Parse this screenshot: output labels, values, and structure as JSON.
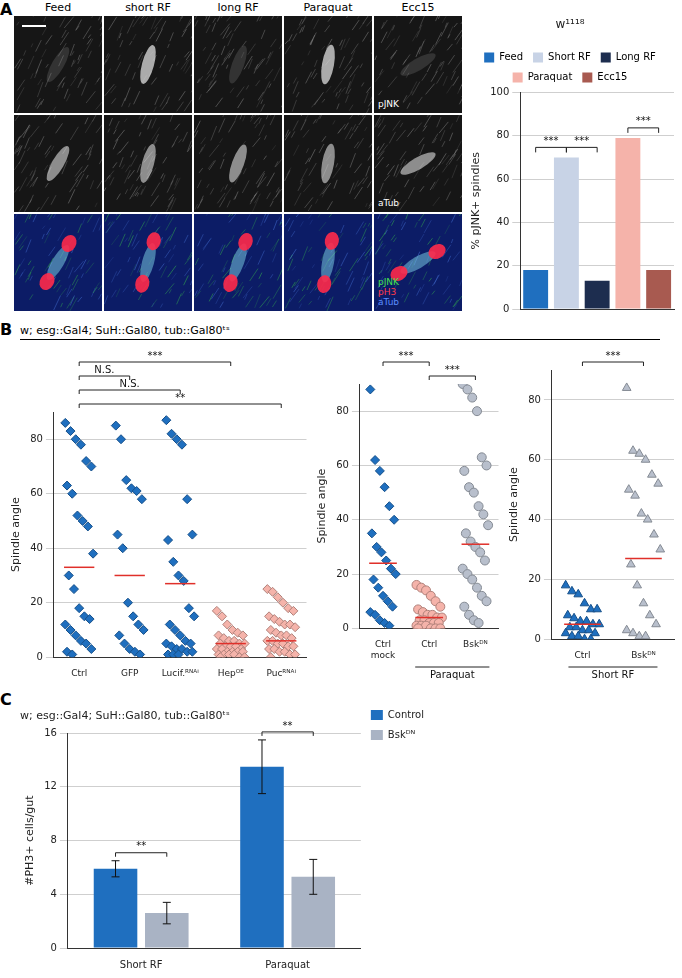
{
  "figure": {
    "panel_labels": [
      "A",
      "B",
      "C"
    ],
    "image_columns": [
      "Feed",
      "short RF",
      "long RF",
      "Paraquat",
      "Ecc15"
    ],
    "image_channels": [
      [
        "pJNK"
      ],
      [
        "aTub"
      ],
      [
        "pJNK",
        "pH3",
        "aTub"
      ]
    ],
    "header": "w; esg::Gal4; SuH::Gal80, tub::Gal80ᵗˢ"
  },
  "chart_data": [
    {
      "type": "bar",
      "title": "w¹¹¹⁸",
      "categories": [
        "Feed",
        "Short RF",
        "Long RF",
        "Paraquat",
        "Ecc15"
      ],
      "values": [
        18,
        70,
        13,
        79,
        18
      ],
      "colors": [
        "#1f6fbf",
        "#c8d3e6",
        "#1d2d4f",
        "#f5b3aa",
        "#a85a50"
      ],
      "ylim": [
        0,
        100
      ],
      "yticks": [
        0,
        20,
        40,
        60,
        80,
        100
      ],
      "ylabel": "% pJNK+ spindles",
      "grid": true,
      "legend": "top",
      "tick_labels": "y",
      "annotations": [
        {
          "text": "***",
          "between": [
            "Feed",
            "Short RF"
          ]
        },
        {
          "text": "***",
          "between": [
            "Short RF",
            "Long RF"
          ]
        },
        {
          "text": "***",
          "between": [
            "Paraquat",
            "Ecc15"
          ]
        }
      ]
    },
    {
      "type": "dot",
      "ylabel": "Spindle angle",
      "ylim": [
        0,
        90
      ],
      "yticks": [
        0,
        20,
        40,
        60,
        80
      ],
      "grid": true,
      "series": [
        {
          "name": "Ctrl",
          "color": "#1f6fbf",
          "marker": "diamond",
          "mean": 33,
          "values": [
            86,
            83,
            80,
            78,
            72,
            70,
            63,
            60,
            52,
            50,
            48,
            38,
            30,
            25,
            18,
            15,
            14,
            12,
            10,
            8,
            6,
            5,
            3,
            2,
            1
          ]
        },
        {
          "name": "GFP",
          "color": "#1f6fbf",
          "marker": "diamond",
          "mean": 30,
          "values": [
            85,
            80,
            65,
            62,
            61,
            58,
            45,
            40,
            20,
            15,
            12,
            10,
            8,
            5,
            3,
            2,
            1
          ]
        },
        {
          "name": "Lucif.ᴿᴺᴬⁱ",
          "color": "#1f6fbf",
          "marker": "diamond",
          "mean": 27,
          "values": [
            87,
            82,
            80,
            78,
            58,
            45,
            43,
            35,
            30,
            28,
            18,
            15,
            12,
            10,
            8,
            6,
            5,
            5,
            4,
            3,
            3,
            2,
            2,
            1,
            1,
            1
          ]
        },
        {
          "name": "Hepᴼᴱ",
          "color": "#f5b3aa",
          "marker": "diamond",
          "mean": 5,
          "values": [
            17,
            15,
            12,
            10,
            9,
            8,
            8,
            7,
            6,
            6,
            5,
            5,
            5,
            4,
            4,
            4,
            3,
            3,
            3,
            2,
            2,
            2,
            2,
            1,
            1,
            1,
            1,
            0,
            0,
            0
          ]
        },
        {
          "name": "Pucᴿᴺᴬⁱ",
          "color": "#f5b3aa",
          "marker": "diamond",
          "mean": 6,
          "values": [
            25,
            24,
            22,
            20,
            18,
            17,
            15,
            14,
            13,
            12,
            12,
            11,
            10,
            9,
            8,
            8,
            7,
            6,
            6,
            5,
            5,
            4,
            4,
            3,
            3,
            2,
            2,
            1,
            1,
            0
          ]
        }
      ],
      "annotations": [
        {
          "text": "***",
          "between": [
            "Ctrl",
            "Hepᴼᴱ"
          ]
        },
        {
          "text": "N.S.",
          "between": [
            "Ctrl",
            "GFP"
          ]
        },
        {
          "text": "N.S.",
          "between": [
            "Ctrl",
            "Lucif.ᴿᴺᴬⁱ"
          ]
        },
        {
          "text": "**",
          "between": [
            "Ctrl",
            "Pucᴿᴺᴬⁱ"
          ]
        }
      ]
    },
    {
      "type": "dot",
      "ylabel": "Spindle angle",
      "ylim": [
        0,
        90
      ],
      "yticks": [
        0,
        20,
        40,
        60,
        80
      ],
      "grid": true,
      "series": [
        {
          "name": "Ctrl\nmock",
          "color": "#1f6fbf",
          "marker": "diamond",
          "mean": 24,
          "values": [
            88,
            62,
            58,
            52,
            45,
            40,
            35,
            30,
            28,
            25,
            22,
            20,
            18,
            15,
            12,
            10,
            8,
            6,
            5,
            3,
            2,
            1
          ]
        },
        {
          "name": "Ctrl",
          "color": "#f5b3aa",
          "marker": "circle",
          "mean": 4,
          "values": [
            16,
            15,
            14,
            12,
            10,
            8,
            7,
            6,
            5,
            5,
            4,
            4,
            3,
            3,
            2,
            2,
            2,
            1,
            1,
            1,
            0,
            0,
            0,
            0
          ]
        },
        {
          "name": "Bskᴰᴺ",
          "color": "#b8bfcc",
          "marker": "circle",
          "mean": 31,
          "values": [
            90,
            88,
            85,
            80,
            63,
            60,
            58,
            52,
            50,
            45,
            42,
            38,
            35,
            32,
            30,
            28,
            25,
            22,
            20,
            18,
            15,
            12,
            10,
            8,
            5,
            3,
            2
          ]
        }
      ],
      "group_labels": [
        {
          "text": "Paraquat",
          "series": [
            "Ctrl",
            "Bskᴰᴺ"
          ]
        }
      ],
      "annotations": [
        {
          "text": "***",
          "between": [
            "Ctrl\nmock",
            "Ctrl"
          ]
        },
        {
          "text": "***",
          "between": [
            "Ctrl",
            "Bskᴰᴺ"
          ]
        }
      ]
    },
    {
      "type": "dot",
      "ylabel": "Spindle angle",
      "ylim": [
        0,
        90
      ],
      "yticks": [
        0,
        20,
        40,
        60,
        80
      ],
      "grid": true,
      "series": [
        {
          "name": "Ctrl",
          "color": "#1f6fbf",
          "marker": "triangle",
          "mean": 5,
          "values": [
            18,
            16,
            15,
            12,
            10,
            10,
            8,
            7,
            6,
            6,
            5,
            5,
            4,
            4,
            3,
            3,
            2,
            2,
            1,
            1,
            0,
            0
          ]
        },
        {
          "name": "Bskᴰᴺ",
          "color": "#b8bfcc",
          "marker": "triangle",
          "mean": 27,
          "values": [
            84,
            63,
            62,
            60,
            55,
            52,
            50,
            48,
            42,
            40,
            35,
            30,
            25,
            18,
            12,
            8,
            5,
            3,
            2,
            1,
            1
          ]
        }
      ],
      "group_labels": [
        {
          "text": "Short RF",
          "series": [
            "Ctrl",
            "Bskᴰᴺ"
          ]
        }
      ],
      "annotations": [
        {
          "text": "***",
          "between": [
            "Ctrl",
            "Bskᴰᴺ"
          ]
        }
      ]
    },
    {
      "type": "bar",
      "title": "w; esg::Gal4; SuH::Gal80, tub::Gal80ᵗˢ",
      "categories": [
        "Short RF",
        "Paraquat"
      ],
      "series": [
        {
          "name": "Control",
          "color": "#1f6fbf",
          "values": [
            5.9,
            13.5
          ],
          "errors": [
            0.6,
            2.0
          ]
        },
        {
          "name": "Bskᴰᴺ",
          "color": "#a9b3c4",
          "values": [
            2.6,
            5.3
          ],
          "errors": [
            0.8,
            1.3
          ]
        }
      ],
      "ylim": [
        0,
        16
      ],
      "yticks": [
        0,
        4,
        8,
        12,
        16
      ],
      "ylabel": "#PH3+ cells/gut",
      "grid": true,
      "legend": "right",
      "annotations": [
        {
          "text": "**",
          "category": "Short RF"
        },
        {
          "text": "**",
          "category": "Paraquat"
        }
      ]
    }
  ]
}
